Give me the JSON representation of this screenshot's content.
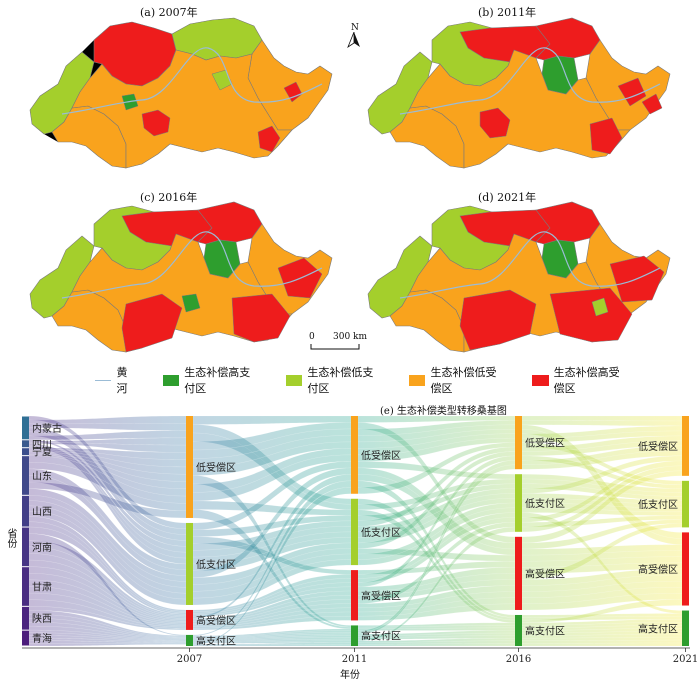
{
  "maps": [
    {
      "title": "(a) 2007年",
      "year": "2007"
    },
    {
      "title": "(b) 2011年",
      "year": "2011"
    },
    {
      "title": "(c) 2016年",
      "year": "2016"
    },
    {
      "title": "(d) 2021年",
      "year": "2021"
    }
  ],
  "north_label": "N",
  "scale": {
    "zero": "0",
    "distance": "300 km"
  },
  "legend": {
    "river": "黄河",
    "items": [
      {
        "label": "生态补偿高支付区",
        "color": "#2e9e2e"
      },
      {
        "label": "生态补偿低支付区",
        "color": "#a4cf2c"
      },
      {
        "label": "生态补偿低受偿区",
        "color": "#f9a31d"
      },
      {
        "label": "生态补偿高受偿区",
        "color": "#ee1c1c"
      }
    ],
    "river_color": "#9bbcd6"
  },
  "sankey": {
    "title": "(e) 生态补偿类型转移桑基图",
    "ylabel": "省份",
    "xlabel": "年份",
    "provinces": [
      "内蒙古",
      "四川",
      "宁夏",
      "山东",
      "山西",
      "河南",
      "甘肃",
      "陕西",
      "青海"
    ],
    "years": [
      "2007",
      "2011",
      "2016",
      "2021"
    ],
    "stage_labels": [
      [
        "低受偿区",
        "低支付区",
        "高受偿区",
        "高支付区"
      ],
      [
        "低受偿区",
        "低支付区",
        "高受偿区",
        "高支付区"
      ],
      [
        "低受偿区",
        "低支付区",
        "高受偿区",
        "高支付区"
      ],
      [
        "低受偿区",
        "低支付区",
        "高受偿区",
        "高支付区"
      ]
    ]
  }
}
